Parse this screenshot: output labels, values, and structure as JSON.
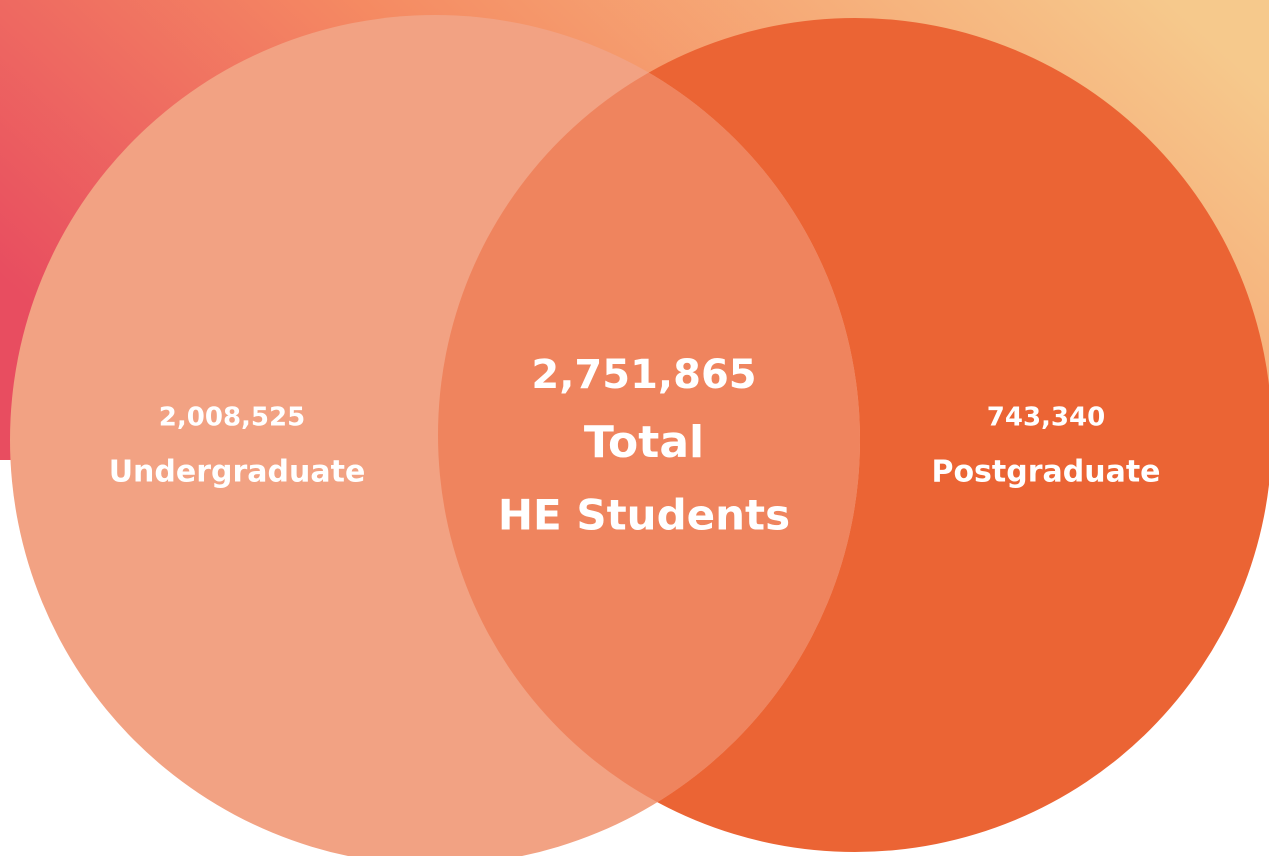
{
  "left": {
    "value": "2,008,525",
    "label": "Undergraduate"
  },
  "center": {
    "value": "2,751,865",
    "label": "Total",
    "sublabel": "HE Students"
  },
  "right": {
    "value": "743,340",
    "label": "Postgraduate"
  }
}
